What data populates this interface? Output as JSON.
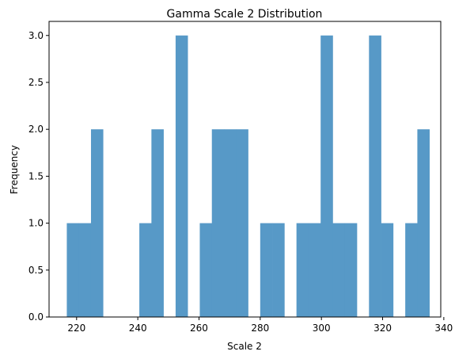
{
  "chart_data": {
    "type": "bar",
    "title": "Gamma Scale 2 Distribution",
    "xlabel": "Scale 2",
    "ylabel": "Frequency",
    "xlim": [
      211,
      339
    ],
    "ylim": [
      0,
      3.15
    ],
    "x_ticks": [
      {
        "value": 220,
        "label": "220"
      },
      {
        "value": 240,
        "label": "240"
      },
      {
        "value": 260,
        "label": "260"
      },
      {
        "value": 280,
        "label": "280"
      },
      {
        "value": 300,
        "label": "300"
      },
      {
        "value": 320,
        "label": "320"
      },
      {
        "value": 340,
        "label": "340"
      }
    ],
    "y_ticks": [
      {
        "value": 0,
        "label": "0.0"
      },
      {
        "value": 0.5,
        "label": "0.5"
      },
      {
        "value": 1,
        "label": "1.0"
      },
      {
        "value": 1.5,
        "label": "1.5"
      },
      {
        "value": 2,
        "label": "2.0"
      },
      {
        "value": 2.5,
        "label": "2.5"
      },
      {
        "value": 3,
        "label": "3.0"
      }
    ],
    "bin_start": 216.8,
    "bin_width": 3.95,
    "values": [
      1,
      1,
      2,
      0,
      0,
      0,
      1,
      2,
      0,
      3,
      0,
      1,
      2,
      2,
      2,
      0,
      1,
      1,
      0,
      1,
      1,
      3,
      1,
      1,
      0,
      3,
      1,
      0,
      1,
      2
    ],
    "bar_color": "#5799c7",
    "grid": false
  }
}
